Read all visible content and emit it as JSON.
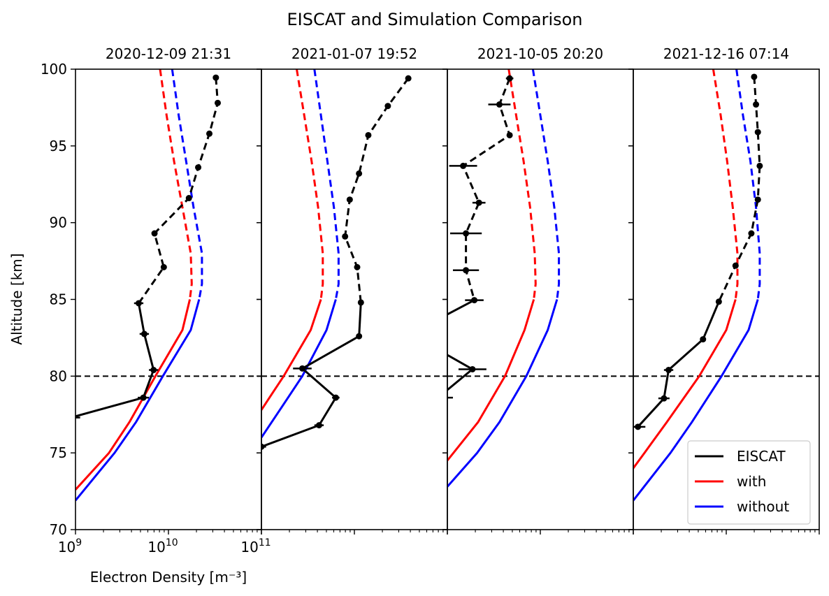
{
  "chart_data": {
    "type": "line",
    "title": "EISCAT and Simulation Comparison",
    "xlabel": "Electron Density [m⁻³]",
    "ylabel": "Altitude [km]",
    "xscale": "log",
    "xlim_log10": [
      9,
      11
    ],
    "ylim": [
      70,
      100
    ],
    "yticks": [
      70,
      75,
      80,
      85,
      90,
      95,
      100
    ],
    "ytick_labels": [
      "70",
      "75",
      "80",
      "85",
      "90",
      "95",
      "100"
    ],
    "xtick_labels": [
      {
        "base": "10",
        "exp": "9"
      },
      {
        "base": "10",
        "exp": "10"
      },
      {
        "base": "10",
        "exp": "11"
      }
    ],
    "reference_line_altitude": 80,
    "legend": {
      "location": "lower-right",
      "entries": [
        {
          "label": "EISCAT",
          "color": "#000000"
        },
        {
          "label": "with",
          "color": "#ff0000"
        },
        {
          "label": "without",
          "color": "#0000ff"
        }
      ]
    },
    "note": "Solid below 85 km, dashed above 85 km for all series. x values are log10 of electron density (m^-3).",
    "panels": [
      {
        "title": "2020-12-09 21:31",
        "eiscat": {
          "alt": [
            99.45,
            97.8,
            95.8,
            93.6,
            91.6,
            89.3,
            87.1,
            84.75,
            82.75,
            80.4,
            78.6,
            77.3,
            76.7
          ],
          "log10_ne": [
            10.51,
            10.53,
            10.44,
            10.32,
            10.22,
            9.85,
            9.95,
            9.68,
            9.74,
            9.84,
            9.73,
            8.95,
            8.9
          ],
          "err_log10": [
            0.02,
            0.02,
            0.02,
            0.02,
            0.02,
            0.03,
            0.03,
            0.05,
            0.05,
            0.05,
            0.06,
            0.1,
            0.1
          ]
        },
        "with": {
          "alt": [
            100,
            97,
            94,
            91,
            88,
            86,
            85,
            83,
            80,
            77,
            75,
            72.6
          ],
          "log10_ne": [
            9.91,
            9.98,
            10.06,
            10.15,
            10.24,
            10.25,
            10.23,
            10.15,
            9.86,
            9.58,
            9.36,
            9.0
          ]
        },
        "without": {
          "alt": [
            100,
            97,
            94,
            91,
            88,
            86,
            85,
            83,
            80,
            77,
            75,
            71.9
          ],
          "log10_ne": [
            10.04,
            10.11,
            10.19,
            10.27,
            10.36,
            10.36,
            10.33,
            10.24,
            9.94,
            9.65,
            9.42,
            9.0
          ]
        }
      },
      {
        "title": "2021-01-07 19:52",
        "eiscat": {
          "alt": [
            99.4,
            97.6,
            95.7,
            93.2,
            91.5,
            89.1,
            87.1,
            84.8,
            82.6,
            80.5,
            78.6,
            76.8,
            75.4
          ],
          "log10_ne": [
            10.58,
            10.36,
            10.15,
            10.05,
            9.95,
            9.9,
            10.03,
            10.07,
            10.05,
            9.44,
            9.8,
            9.62,
            9.0
          ],
          "err_log10": [
            0.02,
            0.02,
            0.02,
            0.02,
            0.02,
            0.02,
            0.02,
            0.02,
            0.02,
            0.1,
            0.04,
            0.05,
            0.05
          ]
        },
        "with": {
          "alt": [
            100,
            97,
            94,
            91,
            88,
            86,
            85,
            83,
            80,
            79,
            77.8
          ],
          "log10_ne": [
            9.38,
            9.46,
            9.54,
            9.61,
            9.66,
            9.66,
            9.64,
            9.53,
            9.24,
            9.13,
            9.0
          ]
        },
        "without": {
          "alt": [
            100,
            97,
            94,
            91,
            88,
            86,
            85,
            83,
            80,
            78,
            76.0
          ],
          "log10_ne": [
            9.57,
            9.64,
            9.71,
            9.78,
            9.83,
            9.83,
            9.8,
            9.7,
            9.44,
            9.22,
            9.0
          ]
        }
      },
      {
        "title": "2021-10-05 20:20",
        "eiscat": {
          "alt": [
            99.4,
            97.7,
            95.7,
            93.7,
            91.3,
            89.3,
            86.9,
            84.95,
            82.75,
            80.45,
            78.6
          ],
          "log10_ne": [
            9.67,
            9.56,
            9.67,
            9.17,
            9.34,
            9.2,
            9.2,
            9.29,
            8.6,
            9.27,
            8.9
          ],
          "err_log10": [
            0.04,
            0.12,
            0.03,
            0.15,
            0.07,
            0.17,
            0.14,
            0.1,
            0.25,
            0.15,
            0.16
          ]
        },
        "with": {
          "alt": [
            100,
            97,
            94,
            91,
            88,
            86,
            85,
            83,
            80,
            77,
            74.5
          ],
          "log10_ne": [
            9.66,
            9.74,
            9.82,
            9.89,
            9.94,
            9.95,
            9.93,
            9.83,
            9.62,
            9.33,
            9.0
          ]
        },
        "without": {
          "alt": [
            100,
            97,
            94,
            91,
            88,
            86,
            85,
            83,
            80,
            77,
            75,
            72.8
          ],
          "log10_ne": [
            9.92,
            10.0,
            10.08,
            10.15,
            10.2,
            10.2,
            10.18,
            10.08,
            9.85,
            9.56,
            9.32,
            9.0
          ]
        }
      },
      {
        "title": "2021-12-16 07:14",
        "eiscat": {
          "alt": [
            99.5,
            97.7,
            95.9,
            93.7,
            91.5,
            89.3,
            87.2,
            84.85,
            82.4,
            80.4,
            78.55,
            76.7
          ],
          "log10_ne": [
            10.3,
            10.32,
            10.34,
            10.36,
            10.34,
            10.27,
            10.1,
            9.92,
            9.75,
            9.38,
            9.33,
            9.05
          ],
          "err_log10": [
            0.02,
            0.02,
            0.02,
            0.02,
            0.02,
            0.02,
            0.02,
            0.02,
            0.02,
            0.05,
            0.06,
            0.08
          ]
        },
        "with": {
          "alt": [
            100,
            97,
            94,
            91,
            88,
            86,
            85,
            83,
            80,
            77,
            75,
            74.0
          ],
          "log10_ne": [
            9.86,
            9.94,
            10.01,
            10.07,
            10.12,
            10.12,
            10.1,
            10.0,
            9.71,
            9.36,
            9.12,
            9.0
          ]
        },
        "without": {
          "alt": [
            100,
            97,
            94,
            91,
            88,
            86,
            85,
            83,
            80,
            77,
            75,
            71.9
          ],
          "log10_ne": [
            10.11,
            10.18,
            10.26,
            10.32,
            10.36,
            10.36,
            10.34,
            10.24,
            9.95,
            9.63,
            9.4,
            9.0
          ]
        }
      }
    ]
  }
}
